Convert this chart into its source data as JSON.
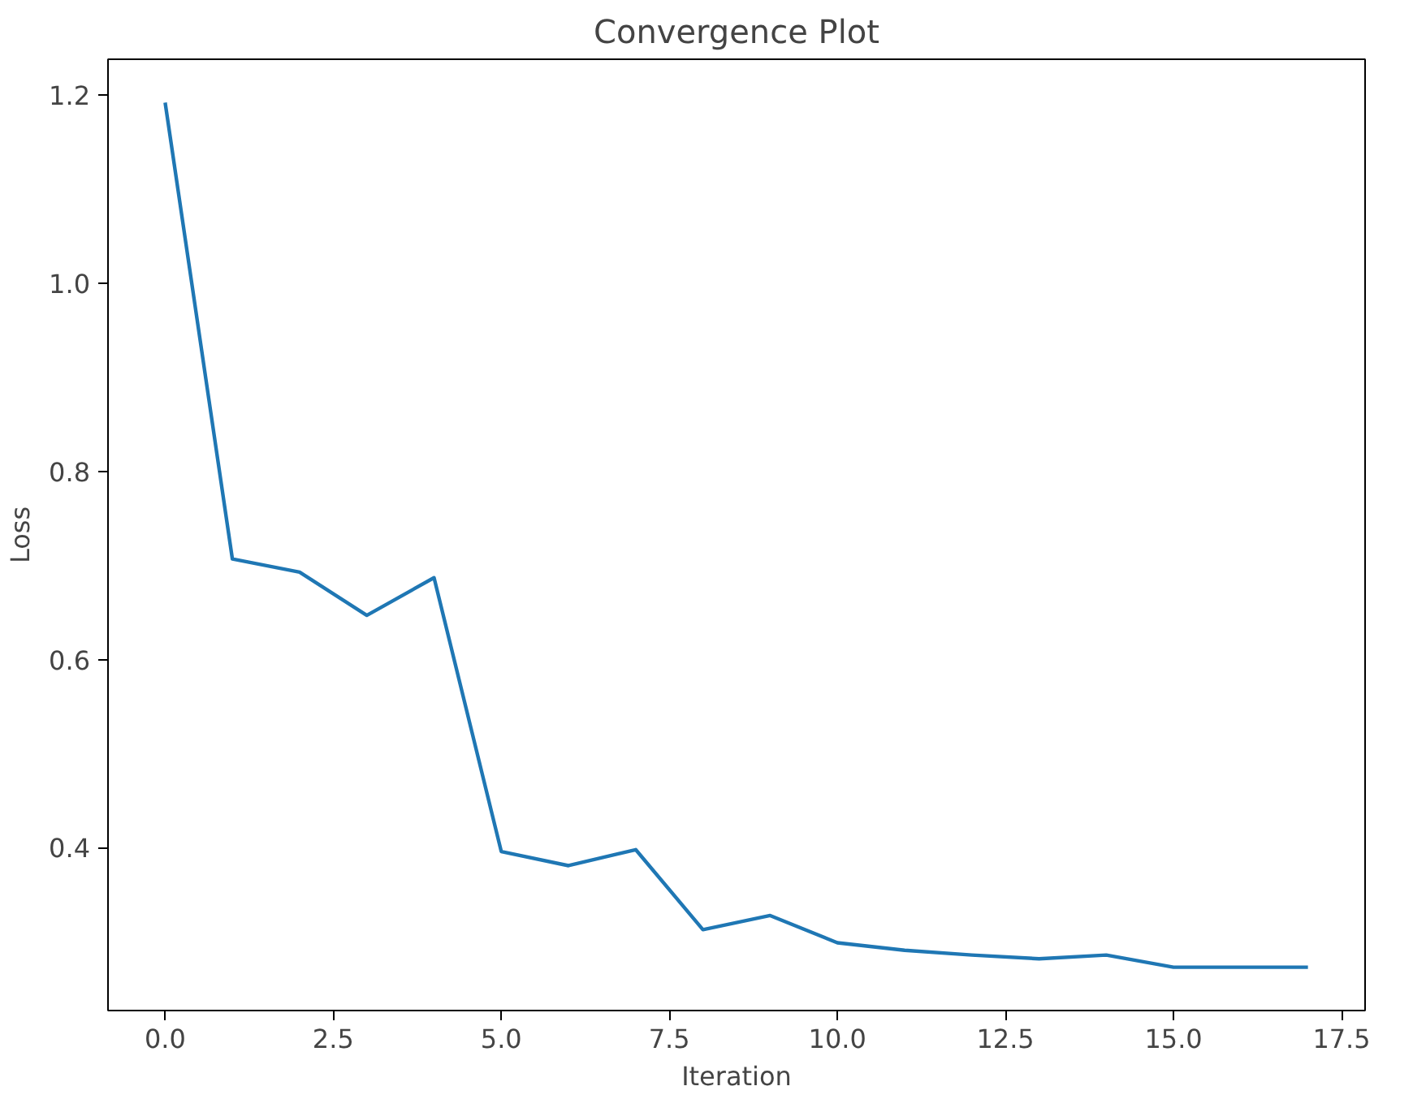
{
  "chart_data": {
    "type": "line",
    "title": "Convergence Plot",
    "xlabel": "Iteration",
    "ylabel": "Loss",
    "x": [
      0,
      1,
      2,
      3,
      4,
      5,
      6,
      7,
      8,
      9,
      10,
      11,
      12,
      13,
      14,
      15,
      16,
      17
    ],
    "series": [
      {
        "color": "#1f77b4",
        "values": [
          1.192,
          0.707,
          0.693,
          0.647,
          0.687,
          0.396,
          0.381,
          0.398,
          0.313,
          0.328,
          0.299,
          0.291,
          0.286,
          0.282,
          0.286,
          0.273,
          0.273,
          0.273
        ]
      }
    ],
    "xlim": [
      -0.85,
      17.85
    ],
    "ylim": [
      0.227,
      1.238
    ],
    "xticks": [
      {
        "value": 0,
        "label": "0.0"
      },
      {
        "value": 2.5,
        "label": "2.5"
      },
      {
        "value": 5,
        "label": "5.0"
      },
      {
        "value": 7.5,
        "label": "7.5"
      },
      {
        "value": 10,
        "label": "10.0"
      },
      {
        "value": 12.5,
        "label": "12.5"
      },
      {
        "value": 15,
        "label": "15.0"
      },
      {
        "value": 17.5,
        "label": "17.5"
      }
    ],
    "yticks": [
      {
        "value": 0.4,
        "label": "0.4"
      },
      {
        "value": 0.6,
        "label": "0.6"
      },
      {
        "value": 0.8,
        "label": "0.8"
      },
      {
        "value": 1.0,
        "label": "1.0"
      },
      {
        "value": 1.2,
        "label": "1.2"
      }
    ],
    "grid": false,
    "marker": "none",
    "line_style": "solid"
  }
}
